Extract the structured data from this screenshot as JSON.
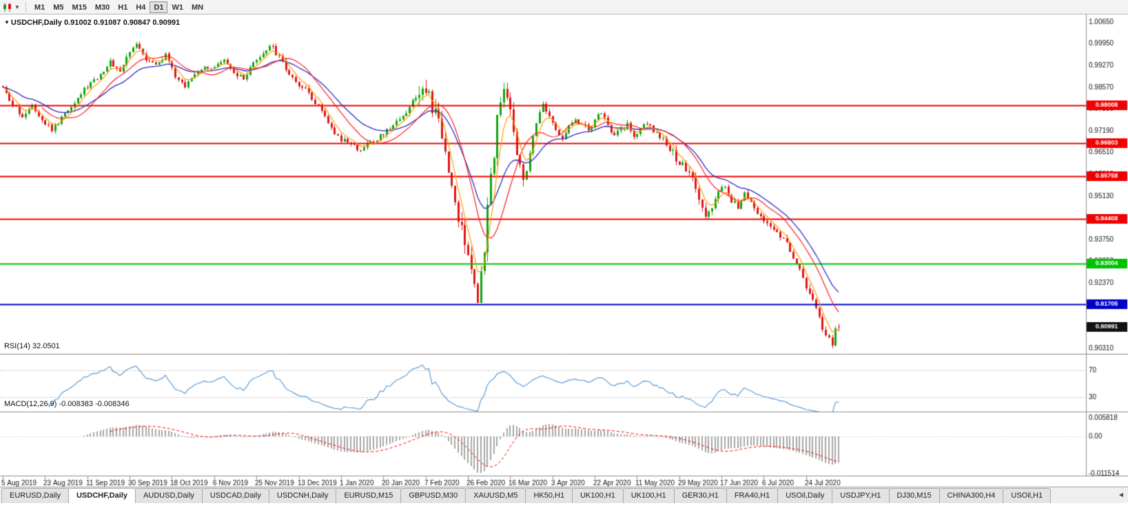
{
  "toolbar": {
    "timeframes": [
      {
        "label": "M1",
        "active": false
      },
      {
        "label": "M5",
        "active": false
      },
      {
        "label": "M15",
        "active": false
      },
      {
        "label": "M30",
        "active": false
      },
      {
        "label": "H1",
        "active": false
      },
      {
        "label": "H4",
        "active": false
      },
      {
        "label": "D1",
        "active": true
      },
      {
        "label": "W1",
        "active": false
      },
      {
        "label": "MN",
        "active": false
      }
    ]
  },
  "chart": {
    "header_title": "USDCHF,Daily",
    "header_ohlc": "0.91002 0.91087 0.90847 0.90991",
    "rsi_header": "RSI(14) 32.0501",
    "macd_header": "MACD(12,26,9) -0.008383 -0.008346"
  },
  "chart_data": {
    "type": "candlestick",
    "symbol": "USDCHF",
    "timeframe": "Daily",
    "ohlc": {
      "open": 0.91002,
      "high": 0.91087,
      "low": 0.90847,
      "close": 0.90991
    },
    "price_axis": {
      "top": 1.0065,
      "bottom": 0.9031,
      "labels": [
        "1.00650",
        "0.99950",
        "0.99270",
        "0.98570",
        "0.97890",
        "0.97190",
        "0.96510",
        "0.95810",
        "0.95130",
        "0.94430",
        "0.93750",
        "0.93050",
        "0.92370",
        "0.91670",
        "0.90990",
        "0.90310"
      ]
    },
    "x_labels": [
      "5 Aug 2019",
      "23 Aug 2019",
      "11 Sep 2019",
      "30 Sep 2019",
      "18 Oct 2019",
      "6 Nov 2019",
      "25 Nov 2019",
      "13 Dec 2019",
      "1 Jan 2020",
      "20 Jan 2020",
      "7 Feb 2020",
      "26 Feb 2020",
      "16 Mar 2020",
      "3 Apr 2020",
      "22 Apr 2020",
      "11 May 2020",
      "29 May 2020",
      "17 Jun 2020",
      "6 Jul 2020",
      "24 Jul 2020"
    ],
    "num_candles": 258,
    "candles_per_label": 13,
    "anchors": [
      [
        0,
        0.985
      ],
      [
        3,
        0.98
      ],
      [
        6,
        0.9768
      ],
      [
        9,
        0.9805
      ],
      [
        12,
        0.976
      ],
      [
        15,
        0.9722
      ],
      [
        18,
        0.976
      ],
      [
        21,
        0.9802
      ],
      [
        24,
        0.984
      ],
      [
        27,
        0.9872
      ],
      [
        30,
        0.99
      ],
      [
        33,
        0.9938
      ],
      [
        36,
        0.9912
      ],
      [
        39,
        0.9968
      ],
      [
        41,
        1.0
      ],
      [
        44,
        0.9952
      ],
      [
        47,
        0.993
      ],
      [
        50,
        0.9958
      ],
      [
        53,
        0.9892
      ],
      [
        56,
        0.986
      ],
      [
        59,
        0.99
      ],
      [
        62,
        0.9928
      ],
      [
        65,
        0.9918
      ],
      [
        68,
        0.994
      ],
      [
        71,
        0.9902
      ],
      [
        74,
        0.9882
      ],
      [
        77,
        0.993
      ],
      [
        80,
        0.9962
      ],
      [
        82,
        0.9995
      ],
      [
        85,
        0.995
      ],
      [
        88,
        0.9902
      ],
      [
        91,
        0.9868
      ],
      [
        94,
        0.984
      ],
      [
        97,
        0.98
      ],
      [
        100,
        0.9748
      ],
      [
        103,
        0.97
      ],
      [
        106,
        0.9682
      ],
      [
        109,
        0.9662
      ],
      [
        112,
        0.9676
      ],
      [
        115,
        0.9692
      ],
      [
        118,
        0.9722
      ],
      [
        121,
        0.975
      ],
      [
        124,
        0.9782
      ],
      [
        127,
        0.9832
      ],
      [
        129,
        0.9846
      ],
      [
        131,
        0.982
      ],
      [
        133,
        0.9776
      ],
      [
        135,
        0.97
      ],
      [
        137,
        0.96
      ],
      [
        139,
        0.95
      ],
      [
        141,
        0.94
      ],
      [
        143,
        0.931
      ],
      [
        145,
        0.924
      ],
      [
        146,
        0.92
      ],
      [
        148,
        0.936
      ],
      [
        150,
        0.956
      ],
      [
        152,
        0.976
      ],
      [
        154,
        0.9868
      ],
      [
        156,
        0.98
      ],
      [
        158,
        0.9652
      ],
      [
        160,
        0.9552
      ],
      [
        162,
        0.965
      ],
      [
        164,
        0.9748
      ],
      [
        166,
        0.9798
      ],
      [
        168,
        0.976
      ],
      [
        170,
        0.9722
      ],
      [
        172,
        0.97
      ],
      [
        174,
        0.9732
      ],
      [
        176,
        0.976
      ],
      [
        178,
        0.974
      ],
      [
        180,
        0.9722
      ],
      [
        182,
        0.9752
      ],
      [
        184,
        0.978
      ],
      [
        186,
        0.9742
      ],
      [
        188,
        0.9702
      ],
      [
        190,
        0.9722
      ],
      [
        192,
        0.974
      ],
      [
        194,
        0.9702
      ],
      [
        196,
        0.973
      ],
      [
        198,
        0.9748
      ],
      [
        200,
        0.9722
      ],
      [
        202,
        0.97
      ],
      [
        204,
        0.968
      ],
      [
        206,
        0.965
      ],
      [
        208,
        0.9622
      ],
      [
        210,
        0.96
      ],
      [
        212,
        0.956
      ],
      [
        214,
        0.95
      ],
      [
        216,
        0.944
      ],
      [
        218,
        0.948
      ],
      [
        220,
        0.952
      ],
      [
        222,
        0.954
      ],
      [
        224,
        0.95
      ],
      [
        226,
        0.9482
      ],
      [
        228,
        0.952
      ],
      [
        230,
        0.9492
      ],
      [
        232,
        0.9462
      ],
      [
        234,
        0.944
      ],
      [
        236,
        0.942
      ],
      [
        238,
        0.94
      ],
      [
        240,
        0.938
      ],
      [
        242,
        0.934
      ],
      [
        244,
        0.93
      ],
      [
        246,
        0.925
      ],
      [
        248,
        0.92
      ],
      [
        250,
        0.915
      ],
      [
        252,
        0.91
      ],
      [
        254,
        0.906
      ],
      [
        255,
        0.9036
      ],
      [
        256,
        0.908
      ],
      [
        257,
        0.9099
      ]
    ],
    "colors": {
      "up": "#0fa50f",
      "down": "#e01414",
      "ma_fast": "#ff9900",
      "ma_mid": "#ff1a1a",
      "ma_slow": "#2929c8",
      "rsi": "#5b9bd5",
      "macd_hist": "#a6a6a6",
      "macd_signal": "#ff0000"
    },
    "moving_averages": [
      {
        "period": 5,
        "type": "ema",
        "color_key": "ma_fast"
      },
      {
        "period": 13,
        "type": "sma",
        "color_key": "ma_mid"
      },
      {
        "period": 21,
        "type": "ema",
        "color_key": "ma_slow"
      }
    ],
    "horizontal_lines": [
      {
        "value": 0.98008,
        "label": "0.98008",
        "color": "#f00000"
      },
      {
        "value": 0.96803,
        "label": "0.96803",
        "color": "#f00000"
      },
      {
        "value": 0.95758,
        "label": "0.95758",
        "color": "#f00000"
      },
      {
        "value": 0.94408,
        "label": "0.94408",
        "color": "#f00000"
      },
      {
        "value": 0.93004,
        "label": "0.93004",
        "color": "#00c300"
      },
      {
        "value": 0.91705,
        "label": "0.91705",
        "color": "#0000c8"
      }
    ],
    "current_price": {
      "value": 0.90991,
      "label": "0.90991",
      "bg": "#111111"
    },
    "rsi": {
      "period": 14,
      "value": 32.0501,
      "levels": [
        70,
        30
      ],
      "level_labels": [
        "70",
        "30"
      ]
    },
    "macd": {
      "fast": 12,
      "slow": 26,
      "signal": 9,
      "value": -0.008383,
      "signal_value": -0.008346,
      "axis_labels": [
        "0.005818",
        "0.00",
        "-0.011514"
      ]
    }
  },
  "tabs": [
    {
      "label": "EURUSD,Daily",
      "active": false
    },
    {
      "label": "USDCHF,Daily",
      "active": true
    },
    {
      "label": "AUDUSD,Daily",
      "active": false
    },
    {
      "label": "USDCAD,Daily",
      "active": false
    },
    {
      "label": "USDCNH,Daily",
      "active": false
    },
    {
      "label": "EURUSD,M15",
      "active": false
    },
    {
      "label": "GBPUSD,M30",
      "active": false
    },
    {
      "label": "XAUUSD,M5",
      "active": false
    },
    {
      "label": "HK50,H1",
      "active": false
    },
    {
      "label": "UK100,H1",
      "active": false
    },
    {
      "label": "UK100,H1",
      "active": false
    },
    {
      "label": "GER30,H1",
      "active": false
    },
    {
      "label": "FRA40,H1",
      "active": false
    },
    {
      "label": "USOil,Daily",
      "active": false
    },
    {
      "label": "USDJPY,H1",
      "active": false
    },
    {
      "label": "DJ30,M15",
      "active": false
    },
    {
      "label": "CHINA300,H4",
      "active": false
    },
    {
      "label": "USOil,H1",
      "active": false
    }
  ],
  "tabbar": {
    "scroll_left_icon": "◄"
  }
}
